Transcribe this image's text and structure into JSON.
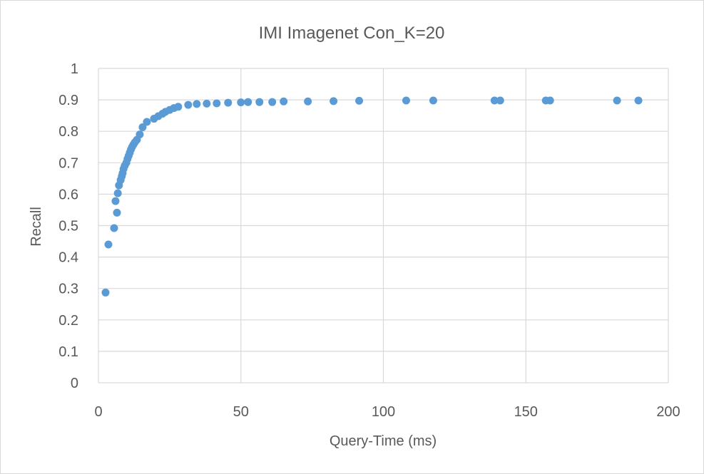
{
  "chart_data": {
    "type": "scatter",
    "title": "IMI Imagenet Con_K=20",
    "xlabel": "Query-Time (ms)",
    "ylabel": "Recall",
    "xlim": [
      0,
      200
    ],
    "ylim": [
      0,
      1
    ],
    "x_ticks": [
      "0",
      "50",
      "100",
      "150",
      "200"
    ],
    "y_ticks": [
      "0",
      "0.1",
      "0.2",
      "0.3",
      "0.4",
      "0.5",
      "0.6",
      "0.7",
      "0.8",
      "0.9",
      "1"
    ],
    "grid": true,
    "legend": "none",
    "marker_color": "#5b9bd5",
    "series": [
      {
        "points": [
          [
            2.5,
            0.287
          ],
          [
            3.5,
            0.44
          ],
          [
            5.5,
            0.492
          ],
          [
            6.5,
            0.541
          ],
          [
            6.0,
            0.578
          ],
          [
            6.8,
            0.603
          ],
          [
            7.2,
            0.628
          ],
          [
            7.8,
            0.645
          ],
          [
            8.2,
            0.657
          ],
          [
            8.5,
            0.667
          ],
          [
            8.8,
            0.68
          ],
          [
            9.2,
            0.69
          ],
          [
            9.8,
            0.7
          ],
          [
            10.2,
            0.712
          ],
          [
            10.6,
            0.722
          ],
          [
            11.0,
            0.732
          ],
          [
            11.4,
            0.742
          ],
          [
            11.8,
            0.75
          ],
          [
            12.3,
            0.758
          ],
          [
            12.8,
            0.765
          ],
          [
            13.5,
            0.773
          ],
          [
            14.5,
            0.79
          ],
          [
            15.5,
            0.813
          ],
          [
            17.0,
            0.83
          ],
          [
            19.5,
            0.84
          ],
          [
            21.0,
            0.848
          ],
          [
            22.5,
            0.856
          ],
          [
            23.5,
            0.862
          ],
          [
            25.0,
            0.868
          ],
          [
            26.5,
            0.874
          ],
          [
            28.0,
            0.878
          ],
          [
            31.5,
            0.884
          ],
          [
            34.5,
            0.887
          ],
          [
            38.0,
            0.888
          ],
          [
            41.5,
            0.889
          ],
          [
            45.5,
            0.891
          ],
          [
            50.0,
            0.892
          ],
          [
            52.5,
            0.893
          ],
          [
            56.5,
            0.893
          ],
          [
            61.0,
            0.893
          ],
          [
            65.0,
            0.895
          ],
          [
            73.5,
            0.895
          ],
          [
            82.5,
            0.896
          ],
          [
            91.5,
            0.897
          ],
          [
            108.0,
            0.898
          ],
          [
            117.5,
            0.898
          ],
          [
            139.0,
            0.898
          ],
          [
            141.0,
            0.898
          ],
          [
            157.0,
            0.898
          ],
          [
            158.5,
            0.898
          ],
          [
            182.0,
            0.898
          ],
          [
            189.5,
            0.898
          ]
        ]
      }
    ]
  }
}
